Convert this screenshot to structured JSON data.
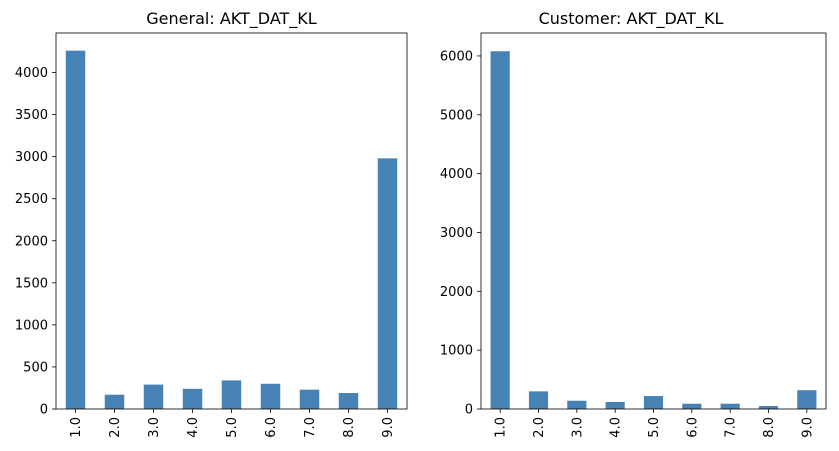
{
  "chart_data": [
    {
      "type": "bar",
      "title": "General: AKT_DAT_KL",
      "xlabel": "",
      "ylabel": "",
      "categories": [
        "1.0",
        "2.0",
        "3.0",
        "4.0",
        "5.0",
        "6.0",
        "7.0",
        "8.0",
        "9.0"
      ],
      "values": [
        4260,
        170,
        290,
        240,
        340,
        300,
        230,
        190,
        2980
      ],
      "ylim": [
        0,
        4470
      ],
      "yticks": [
        0,
        500,
        1000,
        1500,
        2000,
        2500,
        3000,
        3500,
        4000
      ],
      "color": "#4682b4",
      "grid": false
    },
    {
      "type": "bar",
      "title": "Customer: AKT_DAT_KL",
      "xlabel": "",
      "ylabel": "",
      "categories": [
        "1.0",
        "2.0",
        "3.0",
        "4.0",
        "5.0",
        "6.0",
        "7.0",
        "8.0",
        "9.0"
      ],
      "values": [
        6080,
        300,
        140,
        120,
        220,
        90,
        90,
        50,
        320
      ],
      "ylim": [
        0,
        6390
      ],
      "yticks": [
        0,
        1000,
        2000,
        3000,
        4000,
        5000,
        6000
      ],
      "color": "#4682b4",
      "grid": false
    }
  ]
}
